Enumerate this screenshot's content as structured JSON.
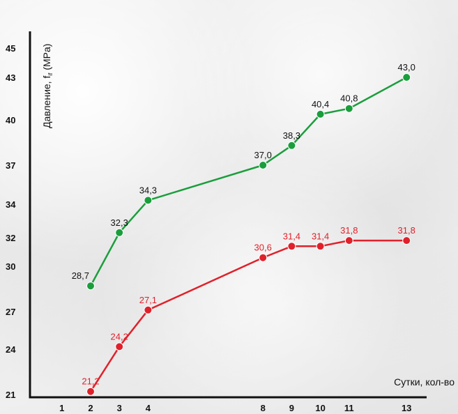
{
  "chart_data": {
    "type": "line",
    "title": "",
    "xlabel": "Сутки, кол-во",
    "ylabel": "Давление, f",
    "ylabel_subscript": "if",
    "ylabel_unit": "(MPa)",
    "x_ticks": [
      1,
      2,
      3,
      4,
      8,
      9,
      10,
      11,
      13
    ],
    "y_ticks": [
      21,
      24,
      27,
      30,
      32,
      34,
      37,
      40,
      43,
      45
    ],
    "series": [
      {
        "color": "#1a9e3c",
        "x": [
          2,
          3,
          4,
          8,
          9,
          10,
          11,
          13
        ],
        "values": [
          28.7,
          32.3,
          34.3,
          37.0,
          38.3,
          40.4,
          40.8,
          43.0
        ],
        "labels": [
          "28,7",
          "32,3",
          "34,3",
          "37,0",
          "38,3",
          "40,4",
          "40,8",
          "43,0"
        ],
        "label_color": "#111111"
      },
      {
        "color": "#e0212b",
        "x": [
          2,
          3,
          4,
          8,
          9,
          10,
          11,
          13
        ],
        "values": [
          21.2,
          24.2,
          27.1,
          30.6,
          31.4,
          31.4,
          31.8,
          31.8
        ],
        "labels": [
          "21,2",
          "24,2",
          "27,1",
          "30,6",
          "31,4",
          "31,4",
          "31,8",
          "31,8"
        ],
        "label_color": "#e0212b"
      }
    ],
    "grid": false,
    "legend": "none"
  }
}
